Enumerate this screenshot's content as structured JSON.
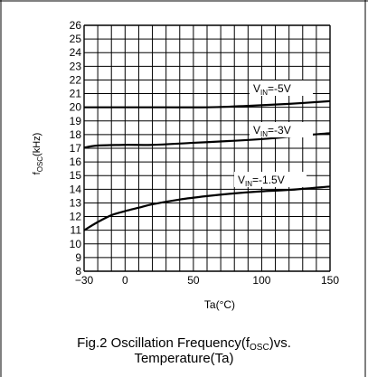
{
  "chart_data": {
    "type": "line",
    "xlabel": "Ta(°C)",
    "ylabel_main": "f",
    "ylabel_sub": "OSC",
    "ylabel_unit": "(kHz)",
    "xlim": [
      -30,
      150
    ],
    "ylim": [
      8,
      26
    ],
    "x_major_ticks": [
      -30,
      0,
      50,
      100,
      150
    ],
    "x_tick_labels": [
      "−30",
      "0",
      "50",
      "100",
      "150"
    ],
    "x_grid_step": 10,
    "y_ticks": [
      8,
      9,
      10,
      11,
      12,
      13,
      14,
      15,
      16,
      17,
      18,
      19,
      20,
      21,
      22,
      23,
      24,
      25,
      26
    ],
    "grid": true,
    "series": [
      {
        "label_main": "V",
        "label_sub": "IN",
        "label_value": "=-5V",
        "x": [
          -30,
          0,
          30,
          60,
          90,
          120,
          150
        ],
        "y": [
          20.0,
          20.0,
          20.0,
          20.0,
          20.1,
          20.25,
          20.45
        ]
      },
      {
        "label_main": "V",
        "label_sub": "IN",
        "label_value": "=-3V",
        "x": [
          -30,
          -20,
          0,
          20,
          50,
          80,
          110,
          130,
          150
        ],
        "y": [
          17.05,
          17.2,
          17.25,
          17.25,
          17.4,
          17.55,
          17.75,
          17.95,
          18.1
        ]
      },
      {
        "label_main": "V",
        "label_sub": "IN",
        "label_value": "=-1.5V",
        "x": [
          -30,
          -20,
          -10,
          0,
          10,
          20,
          40,
          60,
          80,
          100,
          120,
          150
        ],
        "y": [
          11.0,
          11.6,
          12.1,
          12.4,
          12.65,
          12.9,
          13.25,
          13.5,
          13.7,
          13.85,
          13.95,
          14.2
        ]
      }
    ]
  },
  "caption": {
    "line1_prefix": "Fig.2  Oscillation Frequency(f",
    "line1_sub": "OSC",
    "line1_suffix": ")vs.",
    "line2": "Temperature(Ta)"
  }
}
